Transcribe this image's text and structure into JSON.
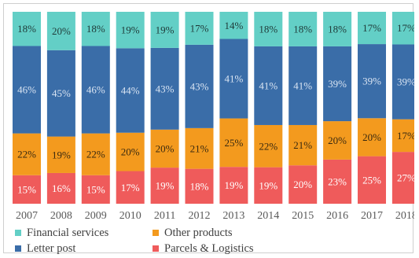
{
  "chart_data": {
    "type": "bar",
    "stacked": true,
    "normalized": true,
    "categories": [
      "2007",
      "2008",
      "2009",
      "2010",
      "2011",
      "2012",
      "2013",
      "2014",
      "2015",
      "2016",
      "2017",
      "2018"
    ],
    "series": [
      {
        "name": "Parcels & Logistics",
        "color": "#ef5b5b",
        "label_color": "#ffffff",
        "values": [
          15,
          16,
          15,
          17,
          19,
          18,
          19,
          19,
          20,
          23,
          25,
          27
        ]
      },
      {
        "name": "Other products",
        "color": "#f39a1e",
        "label_color": "#3a2a10",
        "values": [
          22,
          19,
          22,
          20,
          20,
          21,
          25,
          22,
          21,
          20,
          20,
          17
        ]
      },
      {
        "name": "Letter post",
        "color": "#3a6da8",
        "label_color": "#d9e4f2",
        "values": [
          46,
          45,
          46,
          44,
          43,
          43,
          41,
          41,
          41,
          39,
          39,
          39
        ]
      },
      {
        "name": "Financial services",
        "color": "#63cfc6",
        "label_color": "#1f3a38",
        "values": [
          18,
          20,
          18,
          19,
          19,
          17,
          14,
          18,
          18,
          18,
          17,
          17
        ]
      }
    ],
    "value_format": "{v}%",
    "legend_position": "bottom",
    "legend_order": [
      "Financial services",
      "Other products",
      "Letter post",
      "Parcels & Logistics"
    ],
    "grid": false,
    "title": "",
    "xlabel": "",
    "ylabel": ""
  }
}
